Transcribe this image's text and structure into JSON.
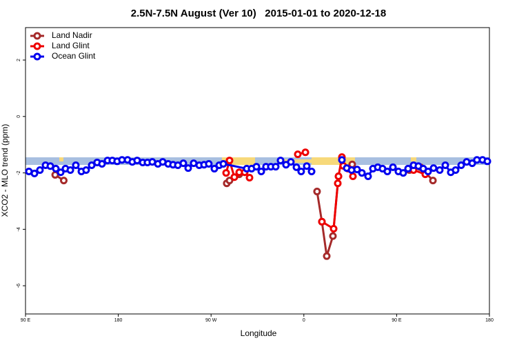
{
  "chart_data": {
    "type": "line",
    "title": "2.5N-7.5N August (Ver 10)   2015-01-01 to 2020-12-18",
    "x_label": "Longitude",
    "y_label": "XCO2 - MLO trend (ppm)",
    "xlim": [
      90,
      540
    ],
    "xticks": [
      {
        "value": 90,
        "label": "90 E"
      },
      180,
      {
        "value": 270,
        "label": "90 W"
      },
      {
        "value": 360,
        "label": "0"
      },
      {
        "value": 450,
        "label": "90 E"
      },
      {
        "value": 540,
        "label": "180"
      }
    ],
    "ylim": [
      -7,
      3.15
    ],
    "yticks": [
      2,
      0,
      -2,
      -4,
      -6
    ],
    "legend": "top-left",
    "series": [
      {
        "name": "Land Nadir",
        "color": "#a52a2a",
        "x": [
          118.8,
          127.1,
          null,
          285.2,
          287.9,
          297.3,
          null,
          372.8,
          377.5,
          382.2,
          388.2,
          393.6,
          null,
          406.9,
          null,
          462.4,
          473.1,
          485.2
        ],
        "values": [
          -2.07,
          -2.27,
          null,
          -2.37,
          -2.27,
          -2.05,
          null,
          -2.66,
          -3.73,
          -4.95,
          -4.24,
          -2.12,
          null,
          -1.7,
          null,
          -1.9,
          -1.8,
          -2.27
        ]
      },
      {
        "name": "Land Glint",
        "color": "#ee0000",
        "x": [
          284.6,
          287.9,
          292.6,
          297.3,
          302.6,
          307.3,
          null,
          354.1,
          361.5,
          null,
          377.5,
          388.9,
          392.9,
          393.6,
          396.9,
          398.2,
          402.9,
          407.6,
          null,
          466.4,
          477.8
        ],
        "values": [
          -2.0,
          -1.56,
          -2.15,
          -1.98,
          -1.98,
          -2.17,
          null,
          -1.34,
          -1.27,
          null,
          -3.73,
          -3.98,
          -2.37,
          -2.12,
          -1.44,
          -1.75,
          -1.85,
          -2.12,
          null,
          -1.9,
          -2.05
        ]
      },
      {
        "name": "Ocean Glint",
        "color": "#0000ee",
        "x": [
          93.3,
          98.7,
          104.0,
          109.4,
          114.1,
          119.4,
          124.1,
          128.8,
          133.5,
          138.8,
          144.2,
          148.8,
          154.2,
          159.5,
          164.2,
          169.6,
          174.2,
          178.9,
          183.6,
          189.0,
          193.6,
          198.3,
          203.7,
          208.3,
          213.0,
          218.4,
          223.1,
          228.4,
          233.1,
          237.8,
          243.1,
          247.8,
          253.1,
          258.5,
          263.2,
          267.8,
          273.2,
          277.9,
          281.9,
          304.6,
          309.3,
          314.0,
          318.7,
          323.3,
          328.0,
          332.7,
          337.4,
          342.7,
          347.4,
          352.8,
          357.4,
          362.8,
          367.5,
          null,
          396.9,
          401.6,
          406.3,
          411.6,
          416.3,
          422.3,
          427.0,
          431.7,
          436.3,
          441.0,
          446.4,
          451.7,
          456.4,
          461.1,
          466.4,
          471.1,
          475.8,
          480.5,
          485.8,
          491.8,
          497.2,
          502.5,
          507.2,
          512.6,
          517.9,
          523.3,
          527.9,
          533.3,
          538.0
        ],
        "values": [
          -1.95,
          -2.02,
          -1.9,
          -1.73,
          -1.76,
          -1.85,
          -1.98,
          -1.85,
          -1.9,
          -1.73,
          -1.95,
          -1.9,
          -1.73,
          -1.63,
          -1.68,
          -1.56,
          -1.56,
          -1.59,
          -1.54,
          -1.54,
          -1.61,
          -1.56,
          -1.63,
          -1.63,
          -1.61,
          -1.68,
          -1.61,
          -1.68,
          -1.71,
          -1.73,
          -1.66,
          -1.83,
          -1.66,
          -1.73,
          -1.71,
          -1.68,
          -1.85,
          -1.73,
          -1.68,
          -1.85,
          -1.85,
          -1.78,
          -1.95,
          -1.78,
          -1.78,
          -1.78,
          -1.56,
          -1.71,
          -1.61,
          -1.8,
          -1.95,
          -1.76,
          -1.95,
          null,
          -1.54,
          -1.83,
          -1.9,
          -1.88,
          -2.0,
          -2.12,
          -1.85,
          -1.8,
          -1.85,
          -1.95,
          -1.8,
          -1.95,
          -2.0,
          -1.85,
          -1.73,
          -1.76,
          -1.85,
          -1.95,
          -1.83,
          -1.9,
          -1.73,
          -1.98,
          -1.9,
          -1.73,
          -1.61,
          -1.66,
          -1.54,
          -1.54,
          -1.59
        ]
      }
    ]
  }
}
